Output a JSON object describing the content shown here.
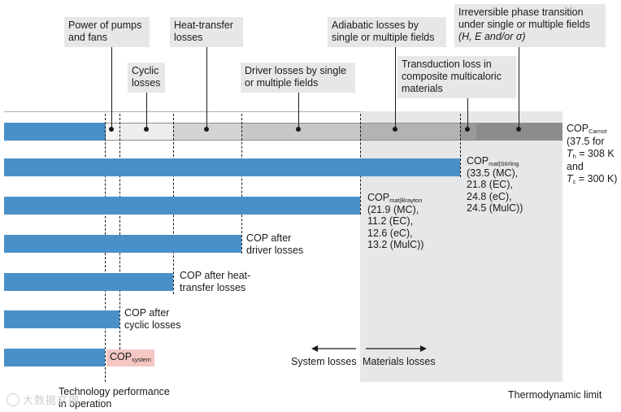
{
  "top_labels": {
    "pumps": [
      "Power of pumps",
      "and fans"
    ],
    "heat_transfer": [
      "Heat-transfer",
      "losses"
    ],
    "adiabatic": [
      "Adiabatic losses by",
      "single or multiple fields"
    ],
    "irreversible": [
      "Irreversible phase transition",
      "under single or multiple fields",
      "(H, E and/or σ)"
    ],
    "cyclic": [
      "Cyclic",
      "losses"
    ],
    "driver": [
      "Driver losses by single",
      "or multiple fields"
    ],
    "transduction": [
      "Transduction loss in",
      "composite multicaloric",
      "materials"
    ]
  },
  "carnot": {
    "cop": "COP",
    "sub": "Carnot",
    "lines": [
      "(37.5 for",
      "T",
      "h",
      " = 308 K",
      "and",
      "T",
      "c",
      " = 300 K)"
    ]
  },
  "stirling": {
    "cop": "COP",
    "sub": "mat|Stirling",
    "values": [
      "(33.5 (MC),",
      "21.8 (EC),",
      "24.8 (eC),",
      "24.5 (MulC))"
    ]
  },
  "brayton": {
    "cop": "COP",
    "sub": "mat|Brayton",
    "values": [
      "(21.9 (MC),",
      "11.2 (EC),",
      "12.6 (eC),",
      "13.2 (MulC))"
    ]
  },
  "bar_labels": {
    "driver": [
      "COP after",
      "driver losses"
    ],
    "heat": [
      "COP after heat-",
      "transfer losses"
    ],
    "cyclic": [
      "COP after",
      "cyclic losses"
    ],
    "system_cop": "COP",
    "system_sub": "system"
  },
  "arrows": {
    "system": "System losses",
    "materials": "Materials losses"
  },
  "bottom": {
    "left": [
      "Technology performance",
      "in operation"
    ],
    "right": "Thermodynamic limit"
  },
  "watermark": "大数据文摘",
  "colors": {
    "bar": "#4a90c8",
    "panel": "#e6e7e8",
    "highlight": "#f4c7c3"
  }
}
